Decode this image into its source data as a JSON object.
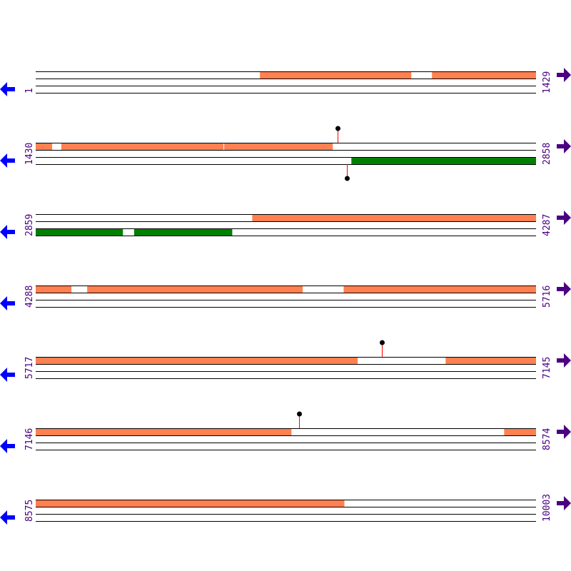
{
  "colors": {
    "forward_feature": "#ff8050",
    "reverse_feature": "#008000",
    "left_arrow": "#0000ff",
    "right_arrow": "#4b0082",
    "label": "#4b0082",
    "lollipop_stem": "#ff0000",
    "lollipop_head": "#000000"
  },
  "icons": {
    "left": "arrow-left-icon",
    "right": "arrow-right-icon"
  },
  "rows": [
    {
      "start": "1",
      "end": "1429",
      "forward": [
        [
          641,
          1073
        ],
        [
          1132,
          1429
        ]
      ],
      "reverse": [],
      "lollipops_top": [],
      "lollipops_bottom": []
    },
    {
      "start": "1430",
      "end": "2858",
      "forward": [
        [
          1430,
          1477
        ],
        [
          1503,
          1966
        ],
        [
          1968,
          2278
        ]
      ],
      "reverse": [
        [
          2331,
          2858
        ]
      ],
      "lollipops_top": [
        2292
      ],
      "lollipops_bottom": [
        2319
      ]
    },
    {
      "start": "2859",
      "end": "4287",
      "forward": [
        [
          3477,
          4287
        ]
      ],
      "reverse": [
        [
          2859,
          3108
        ],
        [
          3140,
          3420
        ]
      ],
      "lollipops_top": [],
      "lollipops_bottom": []
    },
    {
      "start": "4288",
      "end": "5716",
      "forward": [
        [
          4288,
          4390
        ],
        [
          4435,
          5050
        ],
        [
          5167,
          5716
        ]
      ],
      "reverse": [],
      "lollipops_top": [],
      "lollipops_bottom": []
    },
    {
      "start": "5717",
      "end": "7145",
      "forward": [
        [
          5717,
          6636
        ],
        [
          6887,
          7145
        ]
      ],
      "reverse": [],
      "lollipops_top": [
        6706
      ],
      "lollipops_bottom": []
    },
    {
      "start": "7146",
      "end": "8574",
      "forward": [
        [
          7146,
          7876
        ],
        [
          8483,
          8574
        ]
      ],
      "reverse": [],
      "lollipops_top": [
        7898
      ],
      "lollipops_bottom": []
    },
    {
      "start": "8575",
      "end": "10003",
      "forward": [
        [
          8575,
          9456
        ]
      ],
      "reverse": [],
      "lollipops_top": [],
      "lollipops_bottom": []
    }
  ]
}
